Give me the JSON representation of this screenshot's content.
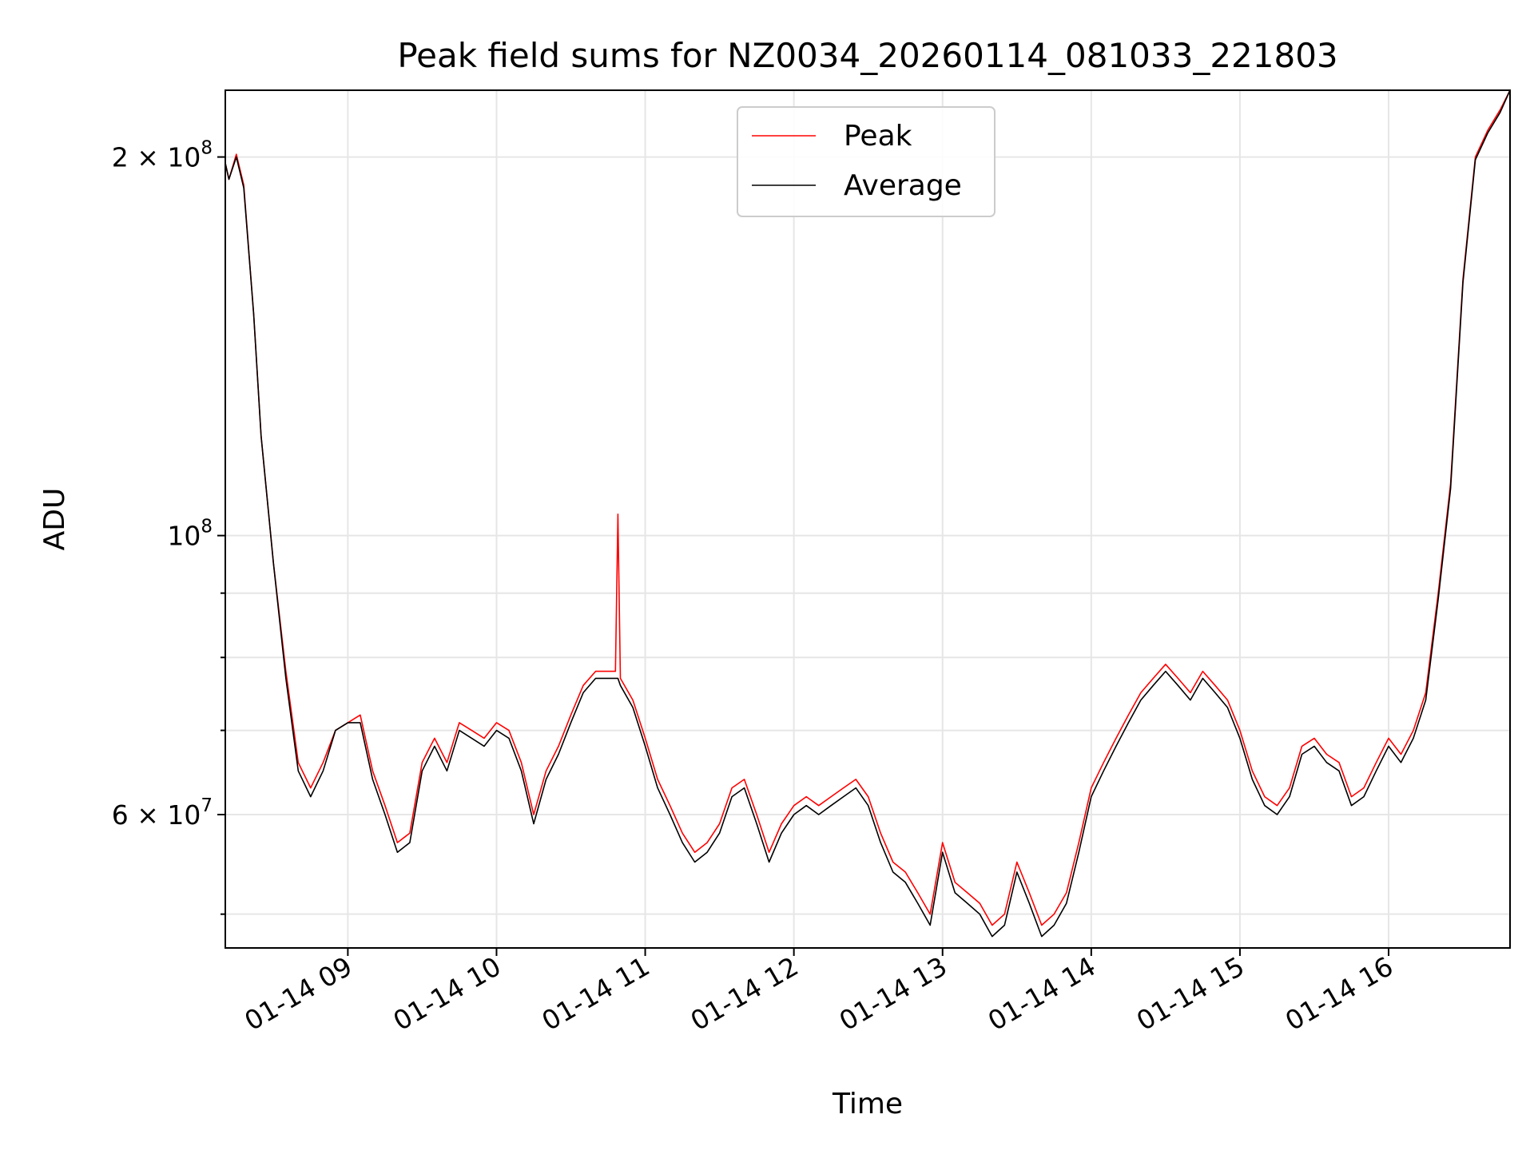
{
  "chart_data": {
    "type": "line",
    "title": "Peak field sums for NZ0034_20260114_081033_221803",
    "xlabel": "Time",
    "ylabel": "ADU",
    "yscale": "log",
    "xlim": [
      "2026-01-14 08:10:33",
      "2026-01-14 16:49:00"
    ],
    "ylim": [
      47000000,
      226000000
    ],
    "x_ticks": [
      {
        "value": "2026-01-14 09:00",
        "label": "01-14 09"
      },
      {
        "value": "2026-01-14 10:00",
        "label": "01-14 10"
      },
      {
        "value": "2026-01-14 11:00",
        "label": "01-14 11"
      },
      {
        "value": "2026-01-14 12:00",
        "label": "01-14 12"
      },
      {
        "value": "2026-01-14 13:00",
        "label": "01-14 13"
      },
      {
        "value": "2026-01-14 14:00",
        "label": "01-14 14"
      },
      {
        "value": "2026-01-14 15:00",
        "label": "01-14 15"
      },
      {
        "value": "2026-01-14 16:00",
        "label": "01-14 16"
      }
    ],
    "y_ticks_major": [
      {
        "value": 100000000,
        "base": "10",
        "exp": "8",
        "label": ""
      },
      {
        "value": 200000000,
        "base": "10",
        "exp": "8",
        "label": "2 × "
      },
      {
        "value": 60000000,
        "base": "10",
        "exp": "7",
        "label": "6 × "
      }
    ],
    "y_ticks_minor": [
      50000000,
      70000000,
      80000000,
      90000000
    ],
    "grid": true,
    "legend": {
      "placement": "upper center"
    },
    "series": [
      {
        "name": "Peak",
        "color": "#ff0000",
        "x": [
          "2026-01-14 08:10",
          "2026-01-14 08:12",
          "2026-01-14 08:15",
          "2026-01-14 08:18",
          "2026-01-14 08:22",
          "2026-01-14 08:25",
          "2026-01-14 08:30",
          "2026-01-14 08:35",
          "2026-01-14 08:40",
          "2026-01-14 08:45",
          "2026-01-14 08:50",
          "2026-01-14 08:55",
          "2026-01-14 09:00",
          "2026-01-14 09:05",
          "2026-01-14 09:10",
          "2026-01-14 09:15",
          "2026-01-14 09:20",
          "2026-01-14 09:25",
          "2026-01-14 09:30",
          "2026-01-14 09:35",
          "2026-01-14 09:40",
          "2026-01-14 09:45",
          "2026-01-14 09:50",
          "2026-01-14 09:55",
          "2026-01-14 10:00",
          "2026-01-14 10:05",
          "2026-01-14 10:10",
          "2026-01-14 10:15",
          "2026-01-14 10:20",
          "2026-01-14 10:25",
          "2026-01-14 10:30",
          "2026-01-14 10:35",
          "2026-01-14 10:40",
          "2026-01-14 10:45",
          "2026-01-14 10:48",
          "2026-01-14 10:49",
          "2026-01-14 10:50",
          "2026-01-14 10:55",
          "2026-01-14 11:00",
          "2026-01-14 11:05",
          "2026-01-14 11:10",
          "2026-01-14 11:15",
          "2026-01-14 11:20",
          "2026-01-14 11:25",
          "2026-01-14 11:30",
          "2026-01-14 11:35",
          "2026-01-14 11:40",
          "2026-01-14 11:45",
          "2026-01-14 11:50",
          "2026-01-14 11:55",
          "2026-01-14 12:00",
          "2026-01-14 12:05",
          "2026-01-14 12:10",
          "2026-01-14 12:15",
          "2026-01-14 12:20",
          "2026-01-14 12:25",
          "2026-01-14 12:30",
          "2026-01-14 12:35",
          "2026-01-14 12:40",
          "2026-01-14 12:45",
          "2026-01-14 12:50",
          "2026-01-14 12:55",
          "2026-01-14 13:00",
          "2026-01-14 13:05",
          "2026-01-14 13:10",
          "2026-01-14 13:15",
          "2026-01-14 13:20",
          "2026-01-14 13:25",
          "2026-01-14 13:30",
          "2026-01-14 13:35",
          "2026-01-14 13:40",
          "2026-01-14 13:45",
          "2026-01-14 13:50",
          "2026-01-14 13:55",
          "2026-01-14 14:00",
          "2026-01-14 14:05",
          "2026-01-14 14:10",
          "2026-01-14 14:15",
          "2026-01-14 14:20",
          "2026-01-14 14:25",
          "2026-01-14 14:30",
          "2026-01-14 14:35",
          "2026-01-14 14:40",
          "2026-01-14 14:45",
          "2026-01-14 14:50",
          "2026-01-14 14:55",
          "2026-01-14 15:00",
          "2026-01-14 15:05",
          "2026-01-14 15:10",
          "2026-01-14 15:15",
          "2026-01-14 15:20",
          "2026-01-14 15:25",
          "2026-01-14 15:30",
          "2026-01-14 15:35",
          "2026-01-14 15:40",
          "2026-01-14 15:45",
          "2026-01-14 15:50",
          "2026-01-14 15:55",
          "2026-01-14 16:00",
          "2026-01-14 16:05",
          "2026-01-14 16:10",
          "2026-01-14 16:15",
          "2026-01-14 16:20",
          "2026-01-14 16:25",
          "2026-01-14 16:30",
          "2026-01-14 16:35",
          "2026-01-14 16:40",
          "2026-01-14 16:45",
          "2026-01-14 16:49"
        ],
        "values": [
          200000000,
          192000000,
          201000000,
          190000000,
          150000000,
          120000000,
          95000000,
          78000000,
          66000000,
          63000000,
          66000000,
          70000000,
          71000000,
          72000000,
          65000000,
          61000000,
          57000000,
          58000000,
          66000000,
          69000000,
          66000000,
          71000000,
          70000000,
          69000000,
          71000000,
          70000000,
          66000000,
          60000000,
          65000000,
          68000000,
          72000000,
          76000000,
          78000000,
          78000000,
          78000000,
          104000000,
          77000000,
          74000000,
          69000000,
          64000000,
          61000000,
          58000000,
          56000000,
          57000000,
          59000000,
          63000000,
          64000000,
          60000000,
          56000000,
          59000000,
          61000000,
          62000000,
          61000000,
          62000000,
          63000000,
          64000000,
          62000000,
          58000000,
          55000000,
          54000000,
          52000000,
          50000000,
          57000000,
          53000000,
          52000000,
          51000000,
          49000000,
          50000000,
          55000000,
          52000000,
          49000000,
          50000000,
          52000000,
          57000000,
          63000000,
          66000000,
          69000000,
          72000000,
          75000000,
          77000000,
          79000000,
          77000000,
          75000000,
          78000000,
          76000000,
          74000000,
          70000000,
          65000000,
          62000000,
          61000000,
          63000000,
          68000000,
          69000000,
          67000000,
          66000000,
          62000000,
          63000000,
          66000000,
          69000000,
          67000000,
          70000000,
          75000000,
          90000000,
          110000000,
          160000000,
          200000000,
          210000000,
          218000000,
          226000000
        ]
      },
      {
        "name": "Average",
        "color": "#000000",
        "x": [
          "2026-01-14 08:10",
          "2026-01-14 08:12",
          "2026-01-14 08:15",
          "2026-01-14 08:18",
          "2026-01-14 08:22",
          "2026-01-14 08:25",
          "2026-01-14 08:30",
          "2026-01-14 08:35",
          "2026-01-14 08:40",
          "2026-01-14 08:45",
          "2026-01-14 08:50",
          "2026-01-14 08:55",
          "2026-01-14 09:00",
          "2026-01-14 09:05",
          "2026-01-14 09:10",
          "2026-01-14 09:15",
          "2026-01-14 09:20",
          "2026-01-14 09:25",
          "2026-01-14 09:30",
          "2026-01-14 09:35",
          "2026-01-14 09:40",
          "2026-01-14 09:45",
          "2026-01-14 09:50",
          "2026-01-14 09:55",
          "2026-01-14 10:00",
          "2026-01-14 10:05",
          "2026-01-14 10:10",
          "2026-01-14 10:15",
          "2026-01-14 10:20",
          "2026-01-14 10:25",
          "2026-01-14 10:30",
          "2026-01-14 10:35",
          "2026-01-14 10:40",
          "2026-01-14 10:45",
          "2026-01-14 10:48",
          "2026-01-14 10:49",
          "2026-01-14 10:50",
          "2026-01-14 10:55",
          "2026-01-14 11:00",
          "2026-01-14 11:05",
          "2026-01-14 11:10",
          "2026-01-14 11:15",
          "2026-01-14 11:20",
          "2026-01-14 11:25",
          "2026-01-14 11:30",
          "2026-01-14 11:35",
          "2026-01-14 11:40",
          "2026-01-14 11:45",
          "2026-01-14 11:50",
          "2026-01-14 11:55",
          "2026-01-14 12:00",
          "2026-01-14 12:05",
          "2026-01-14 12:10",
          "2026-01-14 12:15",
          "2026-01-14 12:20",
          "2026-01-14 12:25",
          "2026-01-14 12:30",
          "2026-01-14 12:35",
          "2026-01-14 12:40",
          "2026-01-14 12:45",
          "2026-01-14 12:50",
          "2026-01-14 12:55",
          "2026-01-14 13:00",
          "2026-01-14 13:05",
          "2026-01-14 13:10",
          "2026-01-14 13:15",
          "2026-01-14 13:20",
          "2026-01-14 13:25",
          "2026-01-14 13:30",
          "2026-01-14 13:35",
          "2026-01-14 13:40",
          "2026-01-14 13:45",
          "2026-01-14 13:50",
          "2026-01-14 13:55",
          "2026-01-14 14:00",
          "2026-01-14 14:05",
          "2026-01-14 14:10",
          "2026-01-14 14:15",
          "2026-01-14 14:20",
          "2026-01-14 14:25",
          "2026-01-14 14:30",
          "2026-01-14 14:35",
          "2026-01-14 14:40",
          "2026-01-14 14:45",
          "2026-01-14 14:50",
          "2026-01-14 14:55",
          "2026-01-14 15:00",
          "2026-01-14 15:05",
          "2026-01-14 15:10",
          "2026-01-14 15:15",
          "2026-01-14 15:20",
          "2026-01-14 15:25",
          "2026-01-14 15:30",
          "2026-01-14 15:35",
          "2026-01-14 15:40",
          "2026-01-14 15:45",
          "2026-01-14 15:50",
          "2026-01-14 15:55",
          "2026-01-14 16:00",
          "2026-01-14 16:05",
          "2026-01-14 16:10",
          "2026-01-14 16:15",
          "2026-01-14 16:20",
          "2026-01-14 16:25",
          "2026-01-14 16:30",
          "2026-01-14 16:35",
          "2026-01-14 16:40",
          "2026-01-14 16:45",
          "2026-01-14 16:49"
        ],
        "values": [
          200000000,
          192000000,
          200000000,
          189000000,
          150000000,
          120000000,
          95000000,
          77000000,
          65000000,
          62000000,
          65000000,
          70000000,
          71000000,
          71000000,
          64000000,
          60000000,
          56000000,
          57000000,
          65000000,
          68000000,
          65000000,
          70000000,
          69000000,
          68000000,
          70000000,
          69000000,
          65000000,
          59000000,
          64000000,
          67000000,
          71000000,
          75000000,
          77000000,
          77000000,
          77000000,
          77000000,
          76000000,
          73000000,
          68000000,
          63000000,
          60000000,
          57000000,
          55000000,
          56000000,
          58000000,
          62000000,
          63000000,
          59000000,
          55000000,
          58000000,
          60000000,
          61000000,
          60000000,
          61000000,
          62000000,
          63000000,
          61000000,
          57000000,
          54000000,
          53000000,
          51000000,
          49000000,
          56000000,
          52000000,
          51000000,
          50000000,
          48000000,
          49000000,
          54000000,
          51000000,
          48000000,
          49000000,
          51000000,
          56000000,
          62000000,
          65000000,
          68000000,
          71000000,
          74000000,
          76000000,
          78000000,
          76000000,
          74000000,
          77000000,
          75000000,
          73000000,
          69000000,
          64000000,
          61000000,
          60000000,
          62000000,
          67000000,
          68000000,
          66000000,
          65000000,
          61000000,
          62000000,
          65000000,
          68000000,
          66000000,
          69000000,
          74000000,
          89000000,
          109000000,
          159000000,
          199000000,
          209000000,
          217000000,
          226000000
        ]
      }
    ]
  }
}
